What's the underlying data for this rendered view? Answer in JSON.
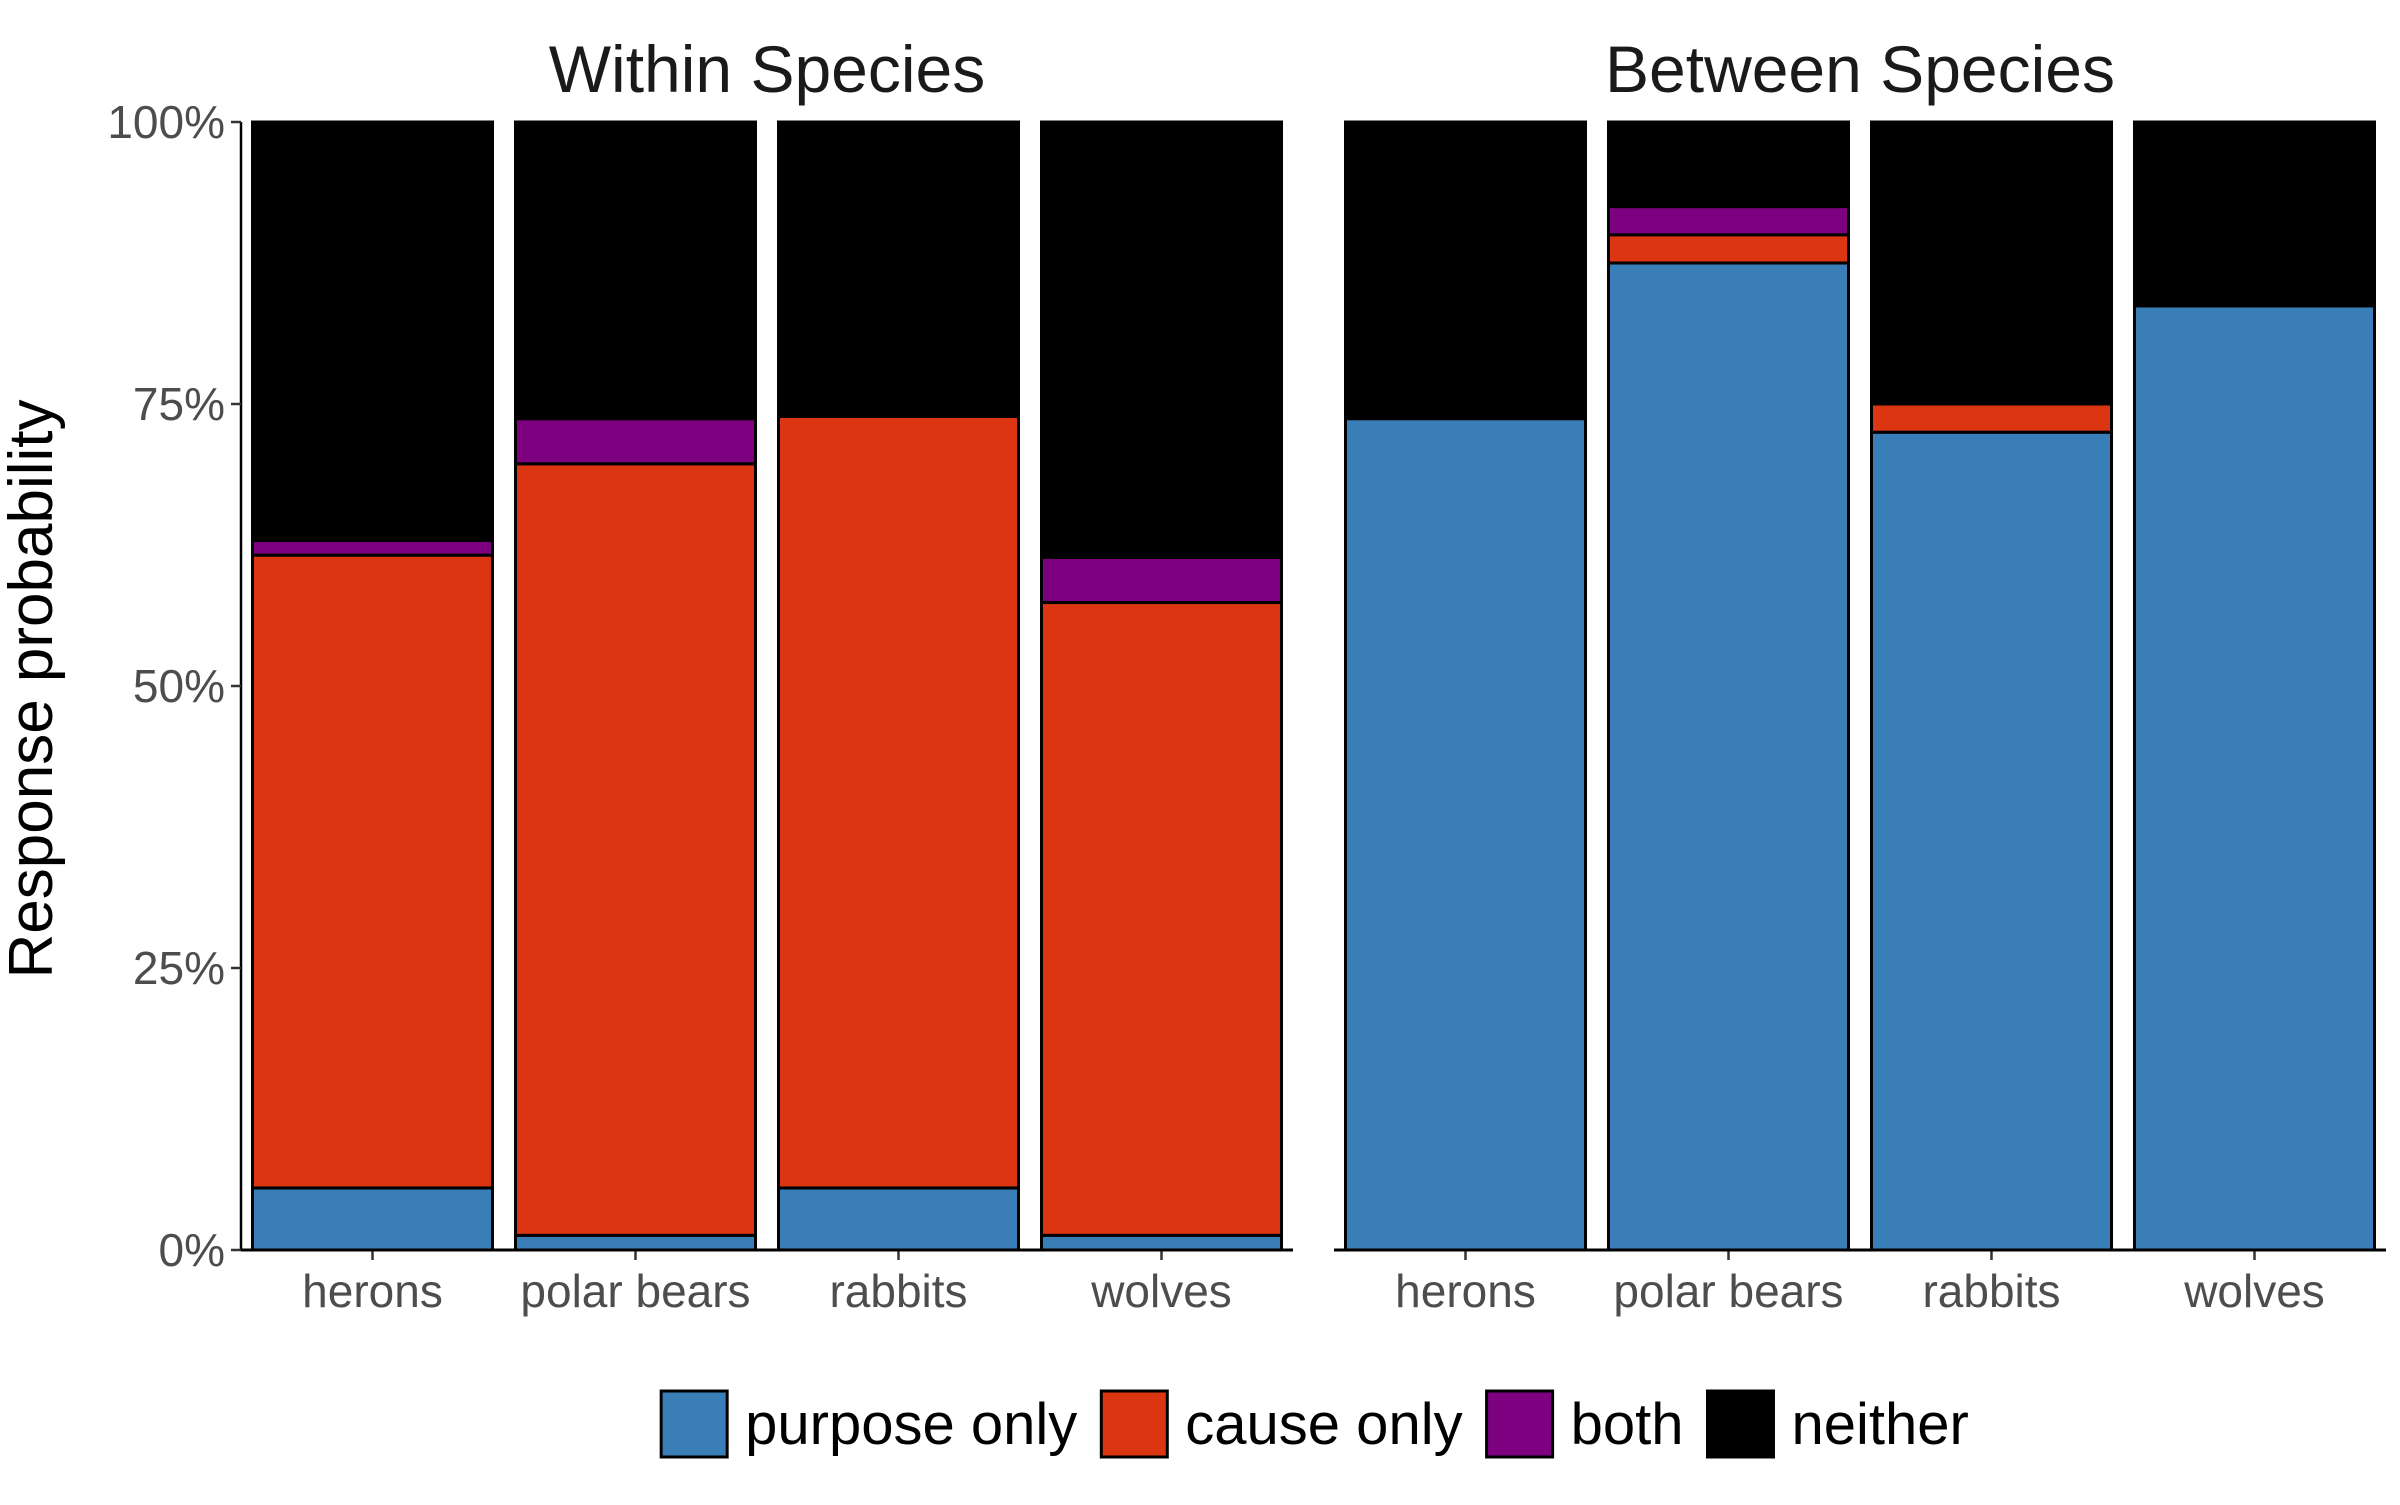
{
  "chart_data": {
    "type": "bar",
    "stacked": true,
    "ylabel": "Response probability",
    "ylim": [
      0,
      1
    ],
    "yticks": [
      0,
      0.25,
      0.5,
      0.75,
      1.0
    ],
    "ytick_labels": [
      "0%",
      "25%",
      "50%",
      "75%",
      "100%"
    ],
    "categories": [
      "herons",
      "polar bears",
      "rabbits",
      "wolves"
    ],
    "legend": {
      "position": "bottom",
      "entries": [
        {
          "key": "purpose",
          "label": "purpose only",
          "color": "#3A7EB8"
        },
        {
          "key": "cause",
          "label": "cause only",
          "color": "#DC3511"
        },
        {
          "key": "both",
          "label": "both",
          "color": "#7D0080"
        },
        {
          "key": "neither",
          "label": "neither",
          "color": "#000000"
        }
      ]
    },
    "panels": [
      {
        "title": "Within Species",
        "series": [
          {
            "name": "purpose only",
            "values": [
              0.055,
              0.013,
              0.055,
              0.013
            ]
          },
          {
            "name": "cause only",
            "values": [
              0.561,
              0.684,
              0.684,
              0.561
            ]
          },
          {
            "name": "both",
            "values": [
              0.013,
              0.04,
              0.0,
              0.04
            ]
          },
          {
            "name": "neither",
            "values": [
              0.371,
              0.263,
              0.261,
              0.386
            ]
          }
        ]
      },
      {
        "title": "Between Species",
        "series": [
          {
            "name": "purpose only",
            "values": [
              0.737,
              0.875,
              0.725,
              0.837
            ]
          },
          {
            "name": "cause only",
            "values": [
              0.0,
              0.025,
              0.025,
              0.0
            ]
          },
          {
            "name": "both",
            "values": [
              0.0,
              0.025,
              0.0,
              0.0
            ]
          },
          {
            "name": "neither",
            "values": [
              0.263,
              0.075,
              0.25,
              0.163
            ]
          }
        ]
      }
    ]
  }
}
